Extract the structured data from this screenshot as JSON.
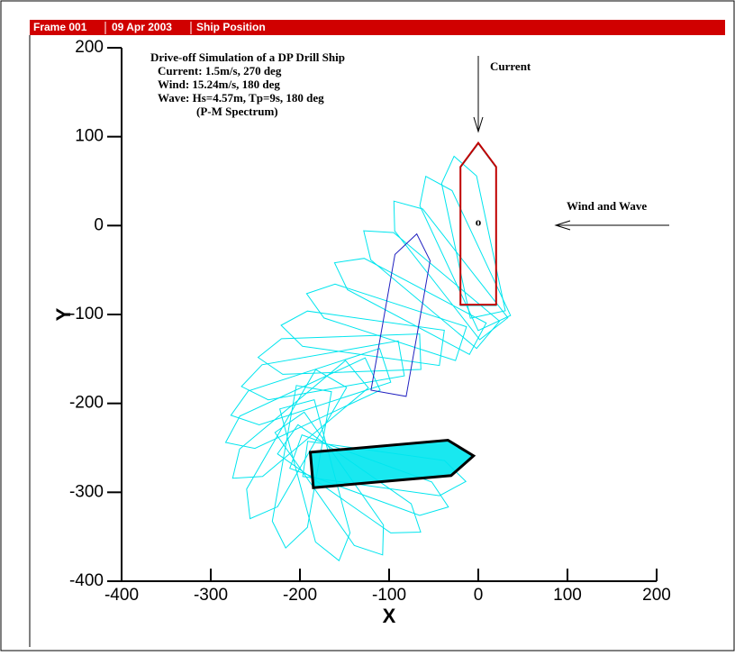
{
  "header": [
    "Frame 001",
    "09 Apr 2003",
    "Ship Position"
  ],
  "chart_data": {
    "type": "ship_track",
    "xlabel": "X",
    "ylabel": "Y",
    "xlim": [
      -400,
      200
    ],
    "ylim": [
      -400,
      200
    ],
    "xticks": [
      -400,
      -300,
      -200,
      -100,
      0,
      100,
      200
    ],
    "yticks": [
      -400,
      -300,
      -200,
      -100,
      0,
      100,
      200
    ],
    "annotations": [
      "Drive-off Simulation of a DP Drill Ship",
      "Current: 1.5m/s,  270 deg",
      "Wind:    15.24m/s,  180 deg",
      "Wave:   Hs=4.57m, Tp=9s, 180 deg",
      "(P-M Spectrum)"
    ],
    "current_label": "Current",
    "wind_label": "Wind and Wave",
    "origin_label": "o",
    "hull": [
      [
        92,
        0
      ],
      [
        65,
        20
      ],
      [
        -90,
        20
      ],
      [
        -90,
        -20
      ],
      [
        65,
        -20
      ]
    ],
    "track": {
      "color": "#00e5ee",
      "x": [
        0,
        -8,
        -20,
        -38,
        -58,
        -80,
        -105,
        -130,
        -155,
        -175,
        -190,
        -200,
        -205,
        -210,
        -200,
        -180,
        -160,
        -140,
        -120,
        -105
      ],
      "y": [
        0,
        -12,
        -28,
        -45,
        -65,
        -85,
        -105,
        -125,
        -145,
        -165,
        -185,
        -205,
        -225,
        -250,
        -272,
        -288,
        -295,
        -292,
        -285,
        -275
      ],
      "heading": [
        0,
        -12,
        -25,
        -38,
        -50,
        -62,
        -72,
        -82,
        -92,
        -100,
        -108,
        -115,
        -130,
        -150,
        -170,
        -195,
        -215,
        -235,
        -250,
        -262
      ]
    },
    "initial": {
      "color": "#c00000",
      "x": 0,
      "y": 1,
      "heading": 0
    },
    "middle": {
      "color": "#2020c0",
      "x": -85,
      "y": -100,
      "heading": 10
    },
    "final": {
      "color": "#000000",
      "x": -97,
      "y": -267,
      "heading": -275
    }
  }
}
